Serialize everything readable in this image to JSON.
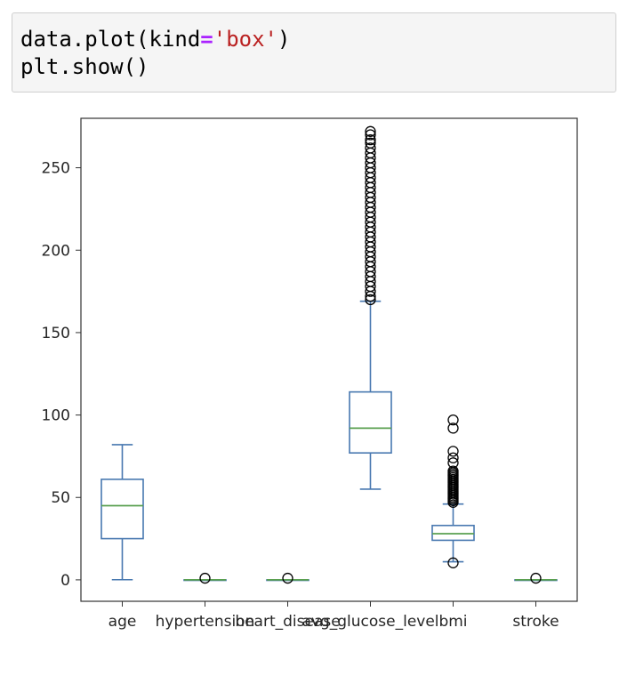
{
  "code_cell": {
    "line1": {
      "prefix": "data.plot(kind",
      "eq": "=",
      "str": "'box'",
      "suffix": ")"
    },
    "line2": "plt.show()"
  },
  "chart_data": {
    "type": "box",
    "title": "",
    "xlabel": "",
    "ylabel": "",
    "ylim": [
      -13,
      280
    ],
    "yticks": [
      0,
      50,
      100,
      150,
      200,
      250
    ],
    "grid": false,
    "colors": {
      "box": "#4878b0",
      "median": "#5aa050",
      "frame": "#333333"
    },
    "categories": [
      "age",
      "hypertension",
      "heart_disease",
      "avg_glucose_level",
      "bmi",
      "stroke"
    ],
    "boxes": [
      {
        "name": "age",
        "whisker_low": 0.08,
        "q1": 25,
        "median": 45,
        "q3": 61,
        "whisker_high": 82,
        "outliers": []
      },
      {
        "name": "hypertension",
        "whisker_low": 0,
        "q1": 0,
        "median": 0,
        "q3": 0,
        "whisker_high": 0,
        "outliers": [
          1
        ]
      },
      {
        "name": "heart_disease",
        "whisker_low": 0,
        "q1": 0,
        "median": 0,
        "q3": 0,
        "whisker_high": 0,
        "outliers": [
          1
        ]
      },
      {
        "name": "avg_glucose_level",
        "whisker_low": 55,
        "q1": 77,
        "median": 92,
        "q3": 114,
        "whisker_high": 169,
        "outliers": [
          170,
          172,
          175,
          178,
          181,
          184,
          187,
          190,
          193,
          196,
          199,
          202,
          205,
          208,
          211,
          214,
          217,
          220,
          223,
          226,
          229,
          232,
          235,
          238,
          241,
          244,
          247,
          250,
          253,
          256,
          259,
          262,
          265,
          267,
          270,
          272
        ]
      },
      {
        "name": "bmi",
        "whisker_low": 11,
        "q1": 24,
        "median": 28,
        "q3": 33,
        "whisker_high": 46,
        "outliers": [
          10.3,
          47,
          48,
          49,
          50,
          51,
          52,
          53,
          54,
          55,
          56,
          57,
          58,
          59,
          60,
          61,
          62,
          63,
          64,
          65,
          66,
          71,
          74,
          78,
          92,
          97
        ]
      },
      {
        "name": "stroke",
        "whisker_low": 0,
        "q1": 0,
        "median": 0,
        "q3": 0,
        "whisker_high": 0,
        "outliers": [
          1
        ]
      }
    ]
  }
}
